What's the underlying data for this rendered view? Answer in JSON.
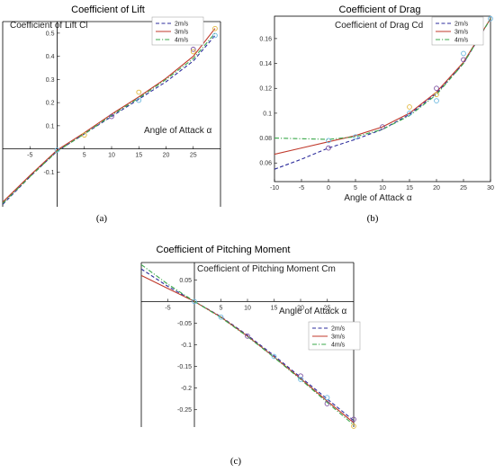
{
  "colors": {
    "2m/s": "#2d2d9c",
    "3m/s": "#c0392b",
    "4m/s": "#3aa84a",
    "marker_yellow": "#e0b63c",
    "marker_purple": "#7a4fa0",
    "marker_cyan": "#6ab7df"
  },
  "legend": [
    "2m/s",
    "3m/s",
    "4m/s"
  ],
  "chart_data": [
    {
      "id": "a",
      "type": "line",
      "title": "Coefficient of Lift",
      "inner_label": "Coefficient of Lift Cl",
      "xlabel": "Angle of Attack α",
      "ylabel": "",
      "sublabel": "(a)",
      "xlim": [
        -10,
        30
      ],
      "ylim": [
        -0.25,
        0.55
      ],
      "xticks": [
        -5,
        5,
        10,
        15,
        20,
        25
      ],
      "yticks": [
        -0.1,
        0.1,
        0.2,
        0.3,
        0.4,
        0.5
      ],
      "axes_origin": true,
      "legend_position": "top-right",
      "series": [
        {
          "name": "2m/s",
          "style": "dashed",
          "points": [
            [
              -10,
              -0.24
            ],
            [
              -5,
              -0.12
            ],
            [
              0,
              -0.01
            ],
            [
              5,
              0.065
            ],
            [
              10,
              0.14
            ],
            [
              15,
              0.215
            ],
            [
              20,
              0.29
            ],
            [
              25,
              0.38
            ],
            [
              29,
              0.49
            ]
          ]
        },
        {
          "name": "3m/s",
          "style": "solid",
          "points": [
            [
              -10,
              -0.23
            ],
            [
              -5,
              -0.115
            ],
            [
              0,
              -0.005
            ],
            [
              5,
              0.07
            ],
            [
              10,
              0.15
            ],
            [
              15,
              0.225
            ],
            [
              20,
              0.305
            ],
            [
              25,
              0.4
            ],
            [
              29,
              0.52
            ]
          ]
        },
        {
          "name": "4m/s",
          "style": "dashdot",
          "points": [
            [
              -10,
              -0.235
            ],
            [
              -5,
              -0.12
            ],
            [
              0,
              -0.01
            ],
            [
              5,
              0.065
            ],
            [
              10,
              0.145
            ],
            [
              15,
              0.22
            ],
            [
              20,
              0.3
            ],
            [
              25,
              0.39
            ],
            [
              29,
              0.5
            ]
          ]
        }
      ],
      "markers": [
        {
          "x": 0,
          "y": -0.005,
          "color": "marker_cyan"
        },
        {
          "x": 5,
          "y": 0.06,
          "color": "marker_yellow"
        },
        {
          "x": 10,
          "y": 0.14,
          "color": "marker_purple"
        },
        {
          "x": 15,
          "y": 0.21,
          "color": "marker_cyan"
        },
        {
          "x": 15,
          "y": 0.245,
          "color": "marker_yellow"
        },
        {
          "x": 25,
          "y": 0.43,
          "color": "marker_purple"
        },
        {
          "x": 25,
          "y": 0.42,
          "color": "marker_yellow"
        },
        {
          "x": 29,
          "y": 0.49,
          "color": "marker_cyan"
        },
        {
          "x": 29,
          "y": 0.52,
          "color": "marker_yellow"
        }
      ]
    },
    {
      "id": "b",
      "type": "line",
      "title": "Coefficient of Drag",
      "inner_label": "Coefficient of Drag Cd",
      "xlabel": "Angle of Attack α",
      "ylabel": "",
      "sublabel": "(b)",
      "xlim": [
        -10,
        30
      ],
      "ylim": [
        0.045,
        0.178
      ],
      "xticks": [
        -10,
        -5,
        0,
        5,
        10,
        15,
        20,
        25,
        30
      ],
      "yticks": [
        0.06,
        0.08,
        0.1,
        0.12,
        0.14,
        0.16
      ],
      "axes_origin": false,
      "legend_position": "top-right",
      "series": [
        {
          "name": "2m/s",
          "style": "dashed",
          "points": [
            [
              -10,
              0.055
            ],
            [
              -5,
              0.063
            ],
            [
              0,
              0.072
            ],
            [
              5,
              0.079
            ],
            [
              10,
              0.087
            ],
            [
              15,
              0.099
            ],
            [
              20,
              0.116
            ],
            [
              25,
              0.14
            ],
            [
              30,
              0.176
            ]
          ]
        },
        {
          "name": "3m/s",
          "style": "solid",
          "points": [
            [
              -10,
              0.067
            ],
            [
              -5,
              0.072
            ],
            [
              0,
              0.077
            ],
            [
              5,
              0.082
            ],
            [
              10,
              0.089
            ],
            [
              15,
              0.1
            ],
            [
              20,
              0.117
            ],
            [
              25,
              0.141
            ],
            [
              30,
              0.176
            ]
          ]
        },
        {
          "name": "4m/s",
          "style": "dashdot",
          "points": [
            [
              -10,
              0.08
            ],
            [
              -5,
              0.0795
            ],
            [
              0,
              0.079
            ],
            [
              5,
              0.081
            ],
            [
              10,
              0.087
            ],
            [
              15,
              0.098
            ],
            [
              20,
              0.115
            ],
            [
              25,
              0.14
            ],
            [
              30,
              0.176
            ]
          ]
        }
      ],
      "markers": [
        {
          "x": 0,
          "y": 0.072,
          "color": "marker_purple"
        },
        {
          "x": 0,
          "y": 0.078,
          "color": "marker_cyan"
        },
        {
          "x": 5,
          "y": 0.081,
          "color": "marker_cyan"
        },
        {
          "x": 10,
          "y": 0.089,
          "color": "marker_purple"
        },
        {
          "x": 15,
          "y": 0.1,
          "color": "marker_cyan"
        },
        {
          "x": 15,
          "y": 0.105,
          "color": "marker_yellow"
        },
        {
          "x": 20,
          "y": 0.12,
          "color": "marker_purple"
        },
        {
          "x": 20,
          "y": 0.11,
          "color": "marker_cyan"
        },
        {
          "x": 20,
          "y": 0.115,
          "color": "marker_yellow"
        },
        {
          "x": 25,
          "y": 0.148,
          "color": "marker_cyan"
        },
        {
          "x": 25,
          "y": 0.143,
          "color": "marker_purple"
        },
        {
          "x": 30,
          "y": 0.176,
          "color": "marker_cyan"
        }
      ]
    },
    {
      "id": "c",
      "type": "line",
      "title": "Coefficient of Pitching Moment",
      "inner_label": "Coefficient of Pitching Moment Cm",
      "xlabel": "Angle of Attack α",
      "ylabel": "",
      "sublabel": "(c)",
      "xlim": [
        -10,
        30
      ],
      "ylim": [
        -0.29,
        0.09
      ],
      "xticks": [
        -5,
        5,
        10,
        15,
        20,
        25
      ],
      "yticks": [
        0.05,
        -0.05,
        -0.1,
        -0.15,
        -0.2,
        -0.25
      ],
      "axes_origin": true,
      "legend_position": "bottom-right",
      "series": [
        {
          "name": "2m/s",
          "style": "dashed",
          "points": [
            [
              -10,
              0.075
            ],
            [
              -5,
              0.035
            ],
            [
              0,
              0.0
            ],
            [
              5,
              -0.035
            ],
            [
              10,
              -0.078
            ],
            [
              15,
              -0.125
            ],
            [
              20,
              -0.175
            ],
            [
              25,
              -0.225
            ],
            [
              30,
              -0.275
            ]
          ]
        },
        {
          "name": "3m/s",
          "style": "solid",
          "points": [
            [
              -10,
              0.06
            ],
            [
              -5,
              0.03
            ],
            [
              0,
              0.0
            ],
            [
              5,
              -0.036
            ],
            [
              10,
              -0.08
            ],
            [
              15,
              -0.128
            ],
            [
              20,
              -0.178
            ],
            [
              25,
              -0.23
            ],
            [
              30,
              -0.28
            ]
          ]
        },
        {
          "name": "4m/s",
          "style": "dashdot",
          "points": [
            [
              -10,
              0.085
            ],
            [
              -5,
              0.04
            ],
            [
              0,
              0.0
            ],
            [
              5,
              -0.037
            ],
            [
              10,
              -0.081
            ],
            [
              15,
              -0.129
            ],
            [
              20,
              -0.18
            ],
            [
              25,
              -0.233
            ],
            [
              30,
              -0.285
            ]
          ]
        }
      ],
      "markers": [
        {
          "x": 0,
          "y": 0.0,
          "color": "marker_cyan"
        },
        {
          "x": 5,
          "y": -0.036,
          "color": "marker_cyan"
        },
        {
          "x": 10,
          "y": -0.08,
          "color": "marker_purple"
        },
        {
          "x": 15,
          "y": -0.127,
          "color": "marker_cyan"
        },
        {
          "x": 20,
          "y": -0.172,
          "color": "marker_purple"
        },
        {
          "x": 20,
          "y": -0.18,
          "color": "marker_cyan"
        },
        {
          "x": 25,
          "y": -0.236,
          "color": "marker_purple"
        },
        {
          "x": 25,
          "y": -0.222,
          "color": "marker_cyan"
        },
        {
          "x": 30,
          "y": -0.272,
          "color": "marker_purple"
        },
        {
          "x": 30,
          "y": -0.288,
          "color": "marker_yellow"
        }
      ]
    }
  ]
}
